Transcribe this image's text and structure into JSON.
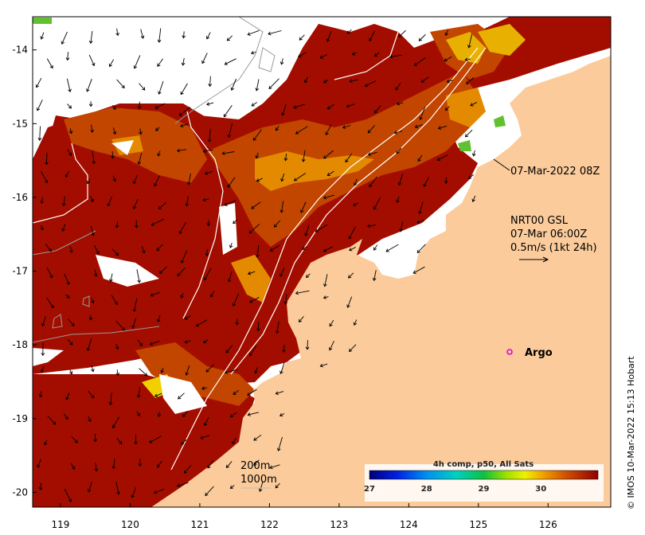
{
  "map": {
    "x_ticks": [
      "119",
      "120",
      "121",
      "122",
      "123",
      "124",
      "125",
      "126"
    ],
    "y_ticks": [
      "-14",
      "-15",
      "-16",
      "-17",
      "-18",
      "-19",
      "-20"
    ],
    "x_range": [
      118.6,
      126.9
    ],
    "y_range": [
      -20.2,
      -13.55
    ]
  },
  "annotations": {
    "timestamp": "07-Mar-2022 08Z",
    "current_model": "NRT00 GSL",
    "current_time": "07-Mar 06:00Z",
    "current_scale": "0.5m/s (1kt 24h)",
    "argo_label": "Argo",
    "isobath_200": "200m",
    "isobath_1000": "1000m"
  },
  "colorbar": {
    "title": "4h comp, p50, All Sats",
    "ticks": [
      "27",
      "28",
      "29",
      "30"
    ],
    "range": [
      27,
      31
    ]
  },
  "credit": "© IMOS 10-Mar-2022 15:13 Hobart",
  "colors": {
    "land": "#FBCB9B",
    "sst_hot": "#A30D00",
    "sst_warm": "#C24500",
    "sst_mild": "#E38A00",
    "no_data": "#FFFFFF",
    "argo_marker": "#E000E0"
  }
}
